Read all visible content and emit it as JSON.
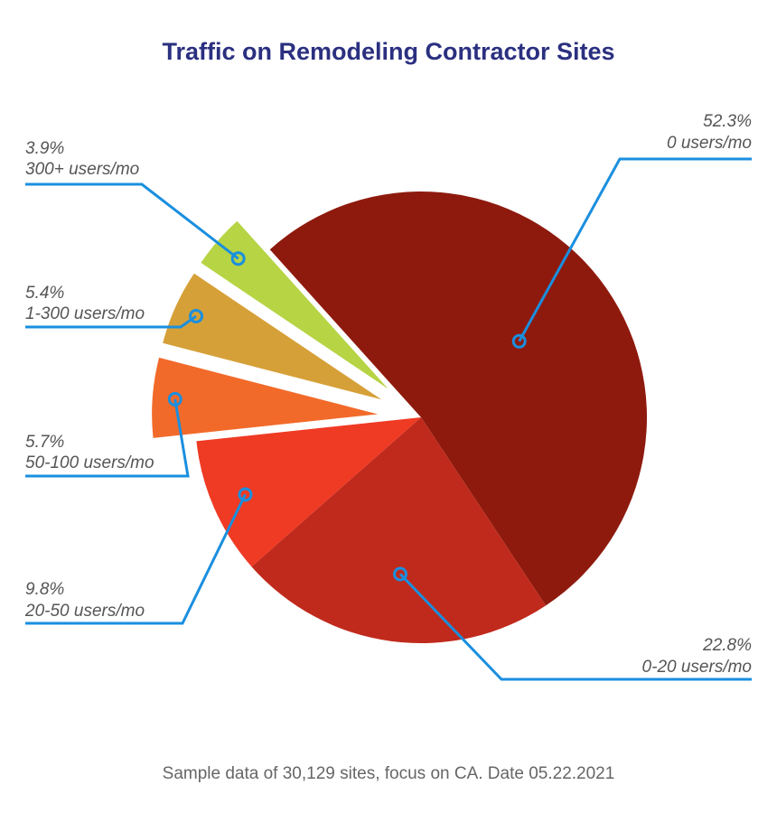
{
  "chart_data": {
    "type": "pie",
    "title": "Traffic on Remodeling Contractor Sites",
    "footnote": "Sample data of 30,129 sites, focus on CA. Date 05.22.2021",
    "slices": [
      {
        "category": "0 users/mo",
        "value": 52.3,
        "pct_label": "52.3%",
        "color": "#8e1a0e",
        "exploded": false
      },
      {
        "category": "0-20 users/mo",
        "value": 22.8,
        "pct_label": "22.8%",
        "color": "#c02a1c",
        "exploded": false
      },
      {
        "category": "20-50 users/mo",
        "value": 9.8,
        "pct_label": "9.8%",
        "color": "#ef3a24",
        "exploded": false
      },
      {
        "category": "50-100 users/mo",
        "value": 5.7,
        "pct_label": "5.7%",
        "color": "#f26a2a",
        "exploded": true
      },
      {
        "category": "1-300 users/mo",
        "value": 5.4,
        "pct_label": "5.4%",
        "color": "#d6a038",
        "exploded": true
      },
      {
        "category": "300+ users/mo",
        "value": 3.9,
        "pct_label": "3.9%",
        "color": "#b6d444",
        "exploded": true
      }
    ],
    "leader_line_color": "#1a8fdf"
  }
}
